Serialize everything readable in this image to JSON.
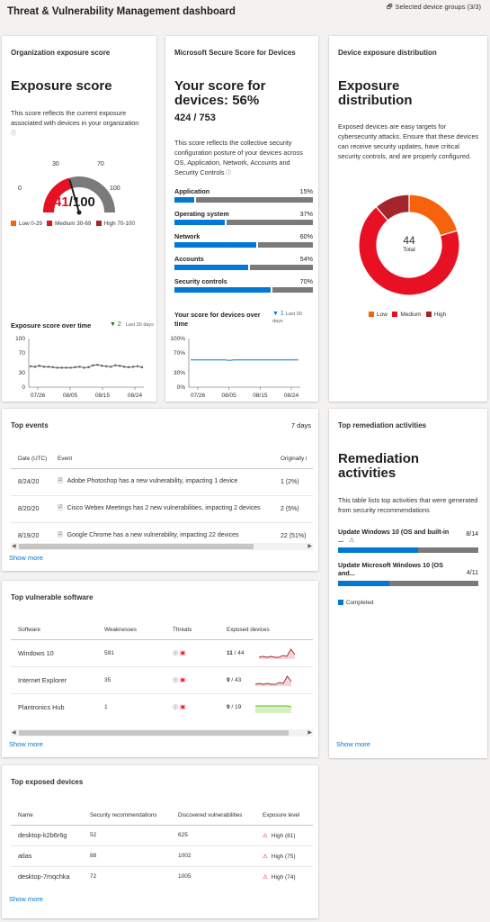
{
  "header": {
    "title": "Threat & Vulnerability Management dashboard",
    "device_groups": "Selected device groups (3/3)"
  },
  "exposure": {
    "card_title": "Organization exposure score",
    "heading": "Exposure score",
    "description": "This score reflects the current exposure associated with devices in your organization",
    "gauge": {
      "score": "41",
      "max": "/100",
      "value_fraction": 0.41,
      "t0": "0",
      "t30": "30",
      "t70": "70",
      "t100": "100"
    },
    "legend": [
      "Low 0-29",
      "Medium 30-69",
      "High 70-100"
    ],
    "over_time_title": "Exposure score over time",
    "over_time_delta": "2",
    "over_time_range": "Last 30 days"
  },
  "exposure_chart": {
    "type": "line",
    "x_ticks": [
      "07/26",
      "08/05",
      "08/15",
      "08/24"
    ],
    "y_ticks": [
      "100",
      "70",
      "30",
      "0"
    ],
    "ylim": [
      0,
      100
    ],
    "values": [
      43,
      42,
      44,
      42,
      42,
      41,
      40,
      40,
      40,
      40,
      41,
      42,
      40,
      41,
      45,
      46,
      44,
      43,
      42,
      45,
      44,
      42,
      41,
      42,
      43,
      41
    ]
  },
  "secure": {
    "card_title": "Microsoft Secure Score for Devices",
    "heading": "Your score for devices: 56%",
    "score": "424 / 753",
    "description": "This score reflects the collective security configuration posture of your devices across OS, Application, Network, Accounts and Security Controls",
    "categories": [
      {
        "label": "Application",
        "pct": "15%",
        "value": 0.15
      },
      {
        "label": "Operating system",
        "pct": "37%",
        "value": 0.37
      },
      {
        "label": "Network",
        "pct": "60%",
        "value": 0.6
      },
      {
        "label": "Accounts",
        "pct": "54%",
        "value": 0.54
      },
      {
        "label": "Security controls",
        "pct": "70%",
        "value": 0.7
      }
    ],
    "over_time_title": "Your score for devices over time",
    "over_time_delta": "1",
    "over_time_range": "Last 30 days"
  },
  "secure_chart": {
    "type": "line",
    "x_ticks": [
      "07/26",
      "08/05",
      "08/15",
      "08/24"
    ],
    "y_ticks": [
      "100%",
      "70%",
      "30%",
      "0%"
    ],
    "ylim": [
      0,
      100
    ],
    "values": [
      56,
      56,
      56,
      56,
      56,
      56,
      56,
      56,
      56,
      55,
      56,
      56,
      56,
      56,
      56,
      56,
      56,
      56,
      56,
      56,
      56,
      56,
      56,
      56,
      56,
      56
    ]
  },
  "distribution": {
    "card_title": "Device exposure distribution",
    "heading_line1": "Exposure",
    "heading_line2": "distribution",
    "description": "Exposed devices are easy targets for cybersecurity attacks. Ensure that these devices can receive security updates, have critical security controls, and are properly configured.",
    "total": "44",
    "total_label": "Total",
    "legend": [
      "Low",
      "Medium",
      "High"
    ]
  },
  "distribution_chart": {
    "type": "pie",
    "labels": [
      "Low",
      "Medium",
      "High"
    ],
    "values": [
      9,
      30,
      5
    ],
    "colors": [
      "#f7630c",
      "#e81123",
      "#a4262c"
    ]
  },
  "events": {
    "card_title": "Top events",
    "range": "7 days",
    "columns": [
      "Date (UTC)",
      "Event",
      "Originally i"
    ],
    "rows": [
      {
        "date": "8/24/20",
        "event": "Adobe Photoshop has a new vulnerability, impacting 1 device",
        "orig": "1 (2%)"
      },
      {
        "date": "8/20/20",
        "event": "Cisco Webex Meetings has 2 new vulnerabilities, impacting 2 devices",
        "orig": "2 (5%)"
      },
      {
        "date": "8/19/20",
        "event": "Google Chrome has a new vulnerability, impacting 22 devices",
        "orig": "22 (51%)"
      }
    ],
    "show_more": "Show more"
  },
  "remediation": {
    "card_title": "Top remediation activities",
    "heading_line1": "Remediation",
    "heading_line2": "activities",
    "description": "This table lists top activities that were generated from security recommendations",
    "items": [
      {
        "line1": "Update Windows 10 (OS and built-in",
        "line2": "...",
        "count": "8/14",
        "value": 0.5714
      },
      {
        "line1": "Update Microsoft Windows 10 (OS",
        "line2": "and...",
        "count": "4/11",
        "value": 0.3636
      }
    ],
    "legend": "Completed",
    "show_more": "Show more"
  },
  "software": {
    "card_title": "Top vulnerable software",
    "columns": [
      "Software",
      "Weaknesses",
      "Threats",
      "Exposed devices"
    ],
    "rows": [
      {
        "name": "Windows 10",
        "weaknesses": "591",
        "exposed_bold": "11",
        "exposed_total": " / 44",
        "trend": "red"
      },
      {
        "name": "Internet Explorer",
        "weaknesses": "35",
        "exposed_bold": "9",
        "exposed_total": " / 43",
        "trend": "red"
      },
      {
        "name": "Plantronics Hub",
        "weaknesses": "1",
        "exposed_bold": "9",
        "exposed_total": " / 19",
        "trend": "green"
      }
    ],
    "show_more": "Show more"
  },
  "devices": {
    "card_title": "Top exposed devices",
    "columns": [
      "Name",
      "Security recommendations",
      "Discovered vulnerabilities",
      "Exposure level"
    ],
    "rows": [
      {
        "name": "desktop-k2b6r6g",
        "recs": "52",
        "vulns": "625",
        "level": "High (81)"
      },
      {
        "name": "atlas",
        "recs": "88",
        "vulns": "1002",
        "level": "High (75)"
      },
      {
        "name": "desktop-7mqchka",
        "recs": "72",
        "vulns": "1005",
        "level": "High (74)"
      }
    ],
    "show_more": "Show more"
  },
  "colors": {
    "accent": "#0078d4",
    "low": "#f7630c",
    "medium": "#e81123",
    "high": "#a4262c",
    "gauge_gray": "#7a7a7a"
  }
}
